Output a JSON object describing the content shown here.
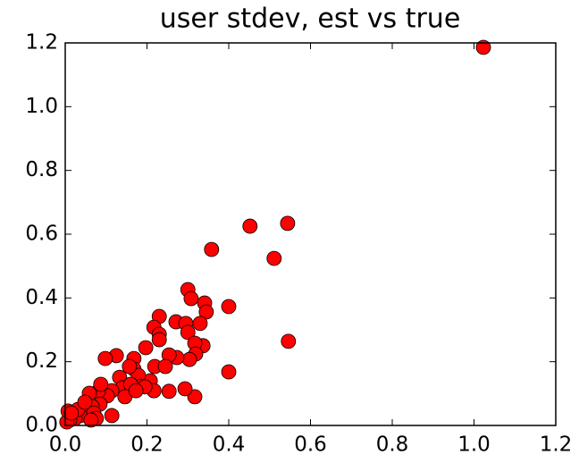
{
  "chart_data": {
    "type": "scatter",
    "title": "user stdev, est vs true",
    "series": [
      {
        "color": "#ff0000",
        "x": [
          1.023,
          0.452,
          0.544,
          0.511,
          0.358,
          0.3,
          0.308,
          0.341,
          0.345,
          0.4,
          0.23,
          0.217,
          0.23,
          0.23,
          0.271,
          0.295,
          0.3,
          0.33,
          0.337,
          0.317,
          0.319,
          0.304,
          0.273,
          0.254,
          0.546,
          0.4,
          0.317,
          0.293,
          0.197,
          0.219,
          0.245,
          0.208,
          0.217,
          0.254,
          0.168,
          0.168,
          0.179,
          0.186,
          0.157,
          0.125,
          0.098,
          0.133,
          0.14,
          0.114,
          0.103,
          0.114,
          0.081,
          0.085,
          0.059,
          0.066,
          0.05,
          0.037,
          0.024,
          0.011,
          0.004,
          0.007,
          0.031,
          0.048,
          0.07,
          0.087,
          0.16,
          0.146,
          0.195,
          0.173,
          0.015,
          0.076,
          0.063
        ],
        "values": [
          1.186,
          0.625,
          0.634,
          0.524,
          0.552,
          0.426,
          0.398,
          0.384,
          0.356,
          0.373,
          0.342,
          0.308,
          0.286,
          0.269,
          0.325,
          0.32,
          0.292,
          0.32,
          0.25,
          0.258,
          0.224,
          0.207,
          0.213,
          0.221,
          0.264,
          0.168,
          0.09,
          0.115,
          0.244,
          0.185,
          0.185,
          0.14,
          0.109,
          0.107,
          0.21,
          0.177,
          0.157,
          0.123,
          0.185,
          0.219,
          0.21,
          0.151,
          0.118,
          0.109,
          0.093,
          0.031,
          0.107,
          0.067,
          0.101,
          0.059,
          0.045,
          0.031,
          0.022,
          0.017,
          0.011,
          0.045,
          0.05,
          0.073,
          0.039,
          0.129,
          0.129,
          0.09,
          0.121,
          0.109,
          0.039,
          0.022,
          0.017
        ]
      }
    ],
    "xlim": [
      0,
      1.2
    ],
    "ylim": [
      0,
      1.2
    ],
    "xticks": [
      {
        "value": 0,
        "label": "0.0"
      },
      0.2,
      0.4,
      0.6,
      0.8,
      {
        "value": 1,
        "label": "1.0"
      },
      1.2
    ],
    "yticks": [
      {
        "value": 0,
        "label": "0.0"
      },
      0.2,
      0.4,
      0.6,
      0.8,
      {
        "value": 1,
        "label": "1.0"
      },
      1.2
    ]
  }
}
